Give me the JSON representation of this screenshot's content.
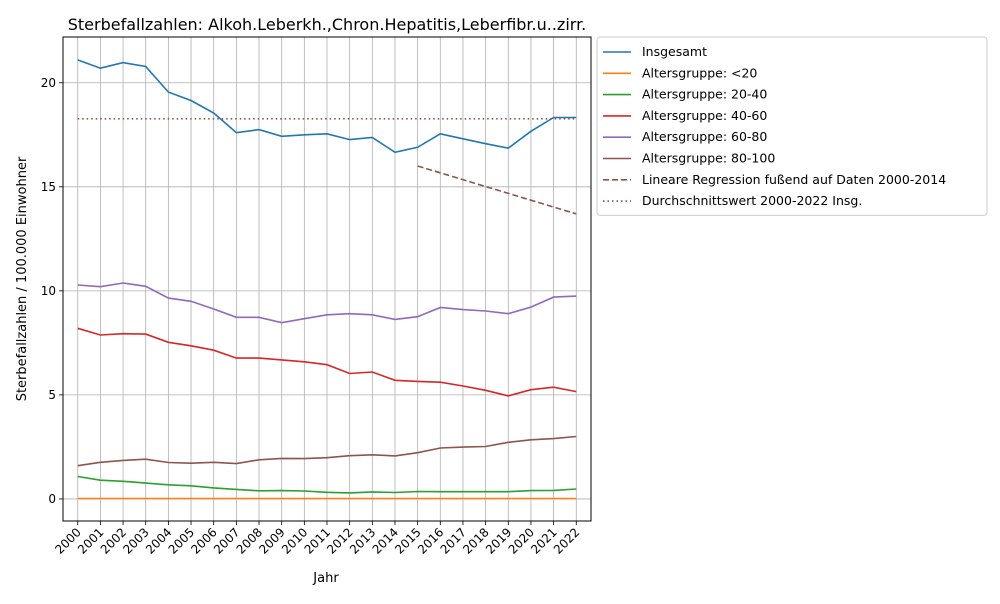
{
  "chart_data": {
    "type": "line",
    "title": "Sterbefallzahlen: Alkoh.Leberkh.,Chron.Hepatitis,Leberfibr.u..zirr.",
    "xlabel": "Jahr",
    "ylabel": "Sterbefallzahlen / 100.000 Einwohner",
    "xlim": [
      1999.35,
      2022.65
    ],
    "ylim": [
      -1.06,
      22.2
    ],
    "yticks": [
      0,
      5,
      10,
      15,
      20
    ],
    "grid": true,
    "legend_position": "outside upper right",
    "x": [
      2000,
      2001,
      2002,
      2003,
      2004,
      2005,
      2006,
      2007,
      2008,
      2009,
      2010,
      2011,
      2012,
      2013,
      2014,
      2015,
      2016,
      2017,
      2018,
      2019,
      2020,
      2021,
      2022
    ],
    "series": [
      {
        "name": "Insgesamt",
        "color": "#1f77b4",
        "style": "solid",
        "values": [
          21.1,
          20.7,
          20.97,
          20.78,
          19.55,
          19.15,
          18.55,
          17.6,
          17.75,
          17.43,
          17.5,
          17.55,
          17.27,
          17.37,
          16.66,
          16.9,
          17.55,
          17.31,
          17.07,
          16.86,
          17.67,
          18.33,
          18.33
        ]
      },
      {
        "name": "Altersgruppe: <20",
        "color": "#ff7f0e",
        "style": "solid",
        "values": [
          0.02,
          0.02,
          0.02,
          0.02,
          0.02,
          0.02,
          0.02,
          0.02,
          0.02,
          0.02,
          0.02,
          0.02,
          0.02,
          0.02,
          0.02,
          0.02,
          0.02,
          0.02,
          0.02,
          0.02,
          0.02,
          0.02,
          0.02
        ]
      },
      {
        "name": "Altersgruppe: 20-40",
        "color": "#2ca02c",
        "style": "solid",
        "values": [
          1.08,
          0.9,
          0.85,
          0.76,
          0.68,
          0.63,
          0.53,
          0.46,
          0.39,
          0.4,
          0.38,
          0.32,
          0.29,
          0.34,
          0.31,
          0.36,
          0.35,
          0.35,
          0.35,
          0.35,
          0.4,
          0.41,
          0.48
        ]
      },
      {
        "name": "Altersgruppe: 40-60",
        "color": "#d62728",
        "style": "solid",
        "values": [
          8.2,
          7.88,
          7.94,
          7.92,
          7.53,
          7.36,
          7.15,
          6.77,
          6.77,
          6.68,
          6.59,
          6.45,
          6.03,
          6.1,
          5.7,
          5.65,
          5.61,
          5.43,
          5.22,
          4.95,
          5.25,
          5.37,
          5.16
        ]
      },
      {
        "name": "Altersgruppe: 60-80",
        "color": "#9467bd",
        "style": "solid",
        "values": [
          10.28,
          10.2,
          10.38,
          10.22,
          9.65,
          9.5,
          9.13,
          8.73,
          8.73,
          8.47,
          8.66,
          8.85,
          8.9,
          8.85,
          8.63,
          8.76,
          9.2,
          9.1,
          9.03,
          8.9,
          9.22,
          9.7,
          9.75
        ]
      },
      {
        "name": "Altersgruppe: 80-100",
        "color": "#8c564b",
        "style": "solid",
        "values": [
          1.6,
          1.76,
          1.85,
          1.91,
          1.75,
          1.72,
          1.76,
          1.7,
          1.88,
          1.95,
          1.94,
          1.98,
          2.08,
          2.12,
          2.07,
          2.22,
          2.45,
          2.49,
          2.52,
          2.72,
          2.84,
          2.9,
          3.0
        ]
      },
      {
        "name": "Lineare Regression fußend auf Daten 2000-2014",
        "color": "#8c564b",
        "style": "dashed",
        "x": [
          2015,
          2022
        ],
        "values": [
          16.0,
          13.7
        ]
      },
      {
        "name": "Durchschnittswert 2000-2022 Insg.",
        "color": "#8c564b",
        "style": "dotted",
        "x": [
          2000,
          2022
        ],
        "values": [
          18.27,
          18.27
        ]
      }
    ]
  }
}
